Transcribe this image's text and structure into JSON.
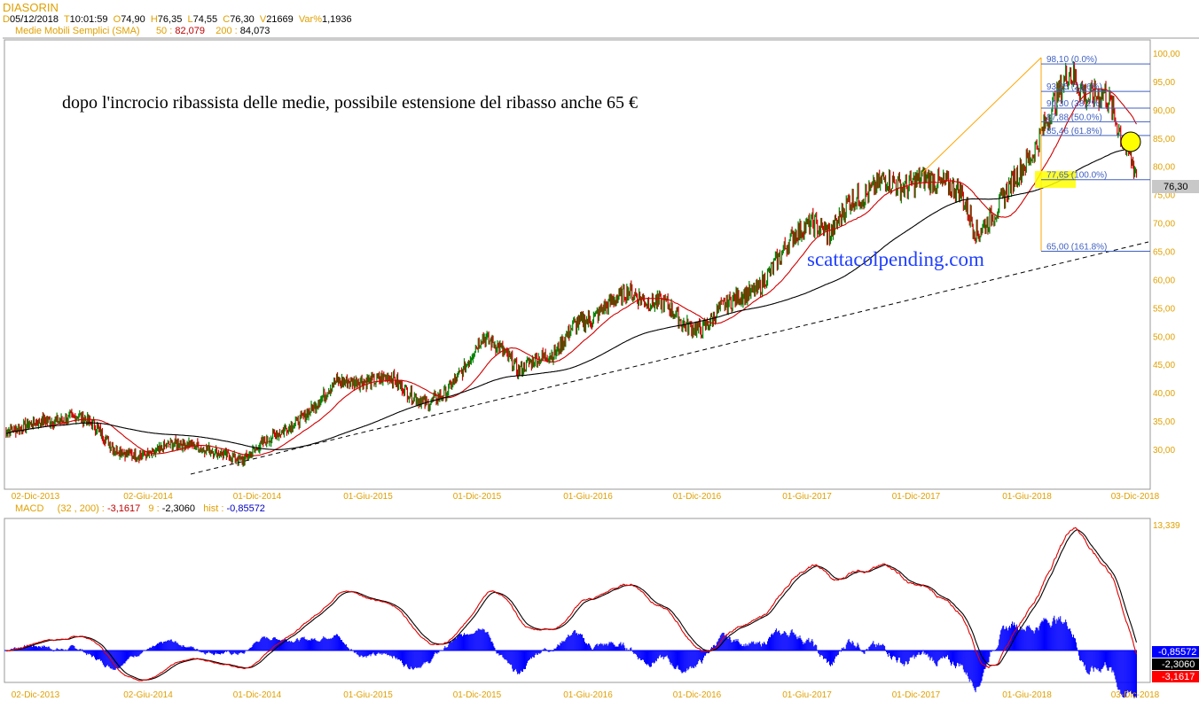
{
  "header": {
    "symbol": "DIASORIN",
    "d_label": "D",
    "date": "05/12/2018",
    "t_label": "T",
    "time": "10:01:59",
    "o_label": "O",
    "open": "74,90",
    "h_label": "H",
    "high": "76,35",
    "l_label": "L",
    "low": "74,55",
    "c_label": "C",
    "close": "76,30",
    "v_label": "V",
    "volume": "21669",
    "var_label": "Var%",
    "var": "1,1936",
    "sma_label": "Medie Mobili Semplici (SMA)",
    "sma50_label": "50 :",
    "sma50": "82,079",
    "sma200_label": "200 :",
    "sma200": "84,073"
  },
  "macd_header": {
    "label": "MACD",
    "params": "(32 , 200) :",
    "macd": "-3,1617",
    "signal_label": "9 :",
    "signal": "-2,3060",
    "hist_label": "hist :",
    "hist": "-0,85572"
  },
  "annotation": "dopo l'incrocio ribassista delle medie, possibile estensione del ribasso anche 65 €",
  "watermark": "scattacolpending.com",
  "last_price_label": "76,30",
  "macd_axis_top": "13,339",
  "macd_badges": {
    "hist": "-0,85572",
    "signal": "-2,3060",
    "macd": "-3,1617"
  },
  "fib_levels": [
    {
      "label": "98,10 (0.0%)",
      "value": 98.1
    },
    {
      "label": "93,25 (23,6%)",
      "value": 93.25
    },
    {
      "label": "90,30 (38,2%)",
      "value": 90.3
    },
    {
      "label": "87,88 (50.0%)",
      "value": 87.88
    },
    {
      "label": "85,46 (61.8%)",
      "value": 85.46
    },
    {
      "label": "77,65 (100.0%)",
      "value": 77.65
    },
    {
      "label": "65,00 (161.8%)",
      "value": 65.0
    }
  ],
  "colors": {
    "axis": "#e0a000",
    "sma50": "#d00000",
    "sma200": "#000000",
    "fib": "#4060c0",
    "hist": "#0000ff",
    "up": "#008000",
    "down": "#d00000"
  },
  "chart_data": {
    "type": "candlestick",
    "price_axis": {
      "ticks": [
        "100,00",
        "95,00",
        "90,00",
        "85,00",
        "80,00",
        "75,00",
        "70,00",
        "65,00",
        "60,00",
        "55,00",
        "50,00",
        "45,00",
        "40,00",
        "35,00",
        "30,00"
      ],
      "range": [
        25,
        102
      ]
    },
    "x_ticks": [
      "02-Dic-2013",
      "02-Giu-2014",
      "01-Dic-2014",
      "01-Giu-2015",
      "01-Dic-2015",
      "01-Giu-2016",
      "01-Dic-2016",
      "01-Giu-2017",
      "01-Dic-2017",
      "01-Giu-2018",
      "03-Dic-2018"
    ],
    "monthly_close_approx": [
      33,
      34,
      35,
      35,
      36,
      34,
      30,
      29,
      29,
      31,
      31,
      30,
      29,
      28,
      31,
      33,
      35,
      38,
      42,
      42,
      42,
      43,
      40,
      38,
      40,
      44,
      50,
      48,
      44,
      46,
      47,
      52,
      53,
      56,
      58,
      56,
      56,
      52,
      51,
      55,
      57,
      58,
      63,
      68,
      70,
      68,
      74,
      75,
      78,
      76,
      78,
      77,
      76,
      68,
      72,
      78,
      82,
      90,
      97,
      92,
      93,
      84,
      76.3
    ],
    "first_month": "Ott-2013",
    "trendline": {
      "from": {
        "date": "Giu-2014",
        "value": 26
      },
      "to": {
        "date": "Dic-2018",
        "value": 67
      },
      "style": "dashed"
    }
  }
}
